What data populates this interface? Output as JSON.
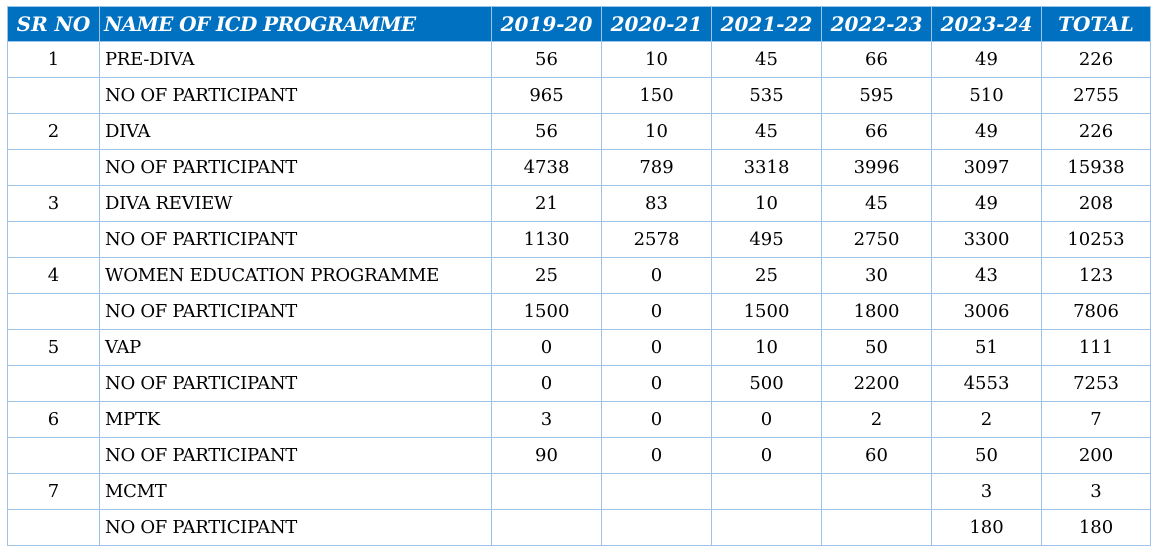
{
  "headers": [
    "SR NO",
    "NAME OF ICD PROGRAMME",
    "2019-20",
    "2020-21",
    "2021-22",
    "2022-23",
    "2023-24",
    "TOTAL"
  ],
  "rows": [
    [
      "1",
      "PRE-DIVA",
      "56",
      "10",
      "45",
      "66",
      "49",
      "226"
    ],
    [
      "",
      "NO OF PARTICIPANT",
      "965",
      "150",
      "535",
      "595",
      "510",
      "2755"
    ],
    [
      "2",
      "DIVA",
      "56",
      "10",
      "45",
      "66",
      "49",
      "226"
    ],
    [
      "",
      "NO OF PARTICIPANT",
      "4738",
      "789",
      "3318",
      "3996",
      "3097",
      "15938"
    ],
    [
      "3",
      "DIVA REVIEW",
      "21",
      "83",
      "10",
      "45",
      "49",
      "208"
    ],
    [
      "",
      "NO OF PARTICIPANT",
      "1130",
      "2578",
      "495",
      "2750",
      "3300",
      "10253"
    ],
    [
      "4",
      "WOMEN EDUCATION PROGRAMME",
      "25",
      "0",
      "25",
      "30",
      "43",
      "123"
    ],
    [
      "",
      "NO OF PARTICIPANT",
      "1500",
      "0",
      "1500",
      "1800",
      "3006",
      "7806"
    ],
    [
      "5",
      "VAP",
      "0",
      "0",
      "10",
      "50",
      "51",
      "111"
    ],
    [
      "",
      "NO OF PARTICIPANT",
      "0",
      "0",
      "500",
      "2200",
      "4553",
      "7253"
    ],
    [
      "6",
      "MPTK",
      "3",
      "0",
      "0",
      "2",
      "2",
      "7"
    ],
    [
      "",
      "NO OF PARTICIPANT",
      "90",
      "0",
      "0",
      "60",
      "50",
      "200"
    ],
    [
      "7",
      "MCMT",
      "",
      "",
      "",
      "",
      "3",
      "3"
    ],
    [
      "",
      "NO OF PARTICIPANT",
      "",
      "",
      "",
      "",
      "180",
      "180"
    ]
  ],
  "colors": {
    "header_bg": "#0070c0",
    "header_text": "#ffffff",
    "grid": "#9dc3e6"
  }
}
